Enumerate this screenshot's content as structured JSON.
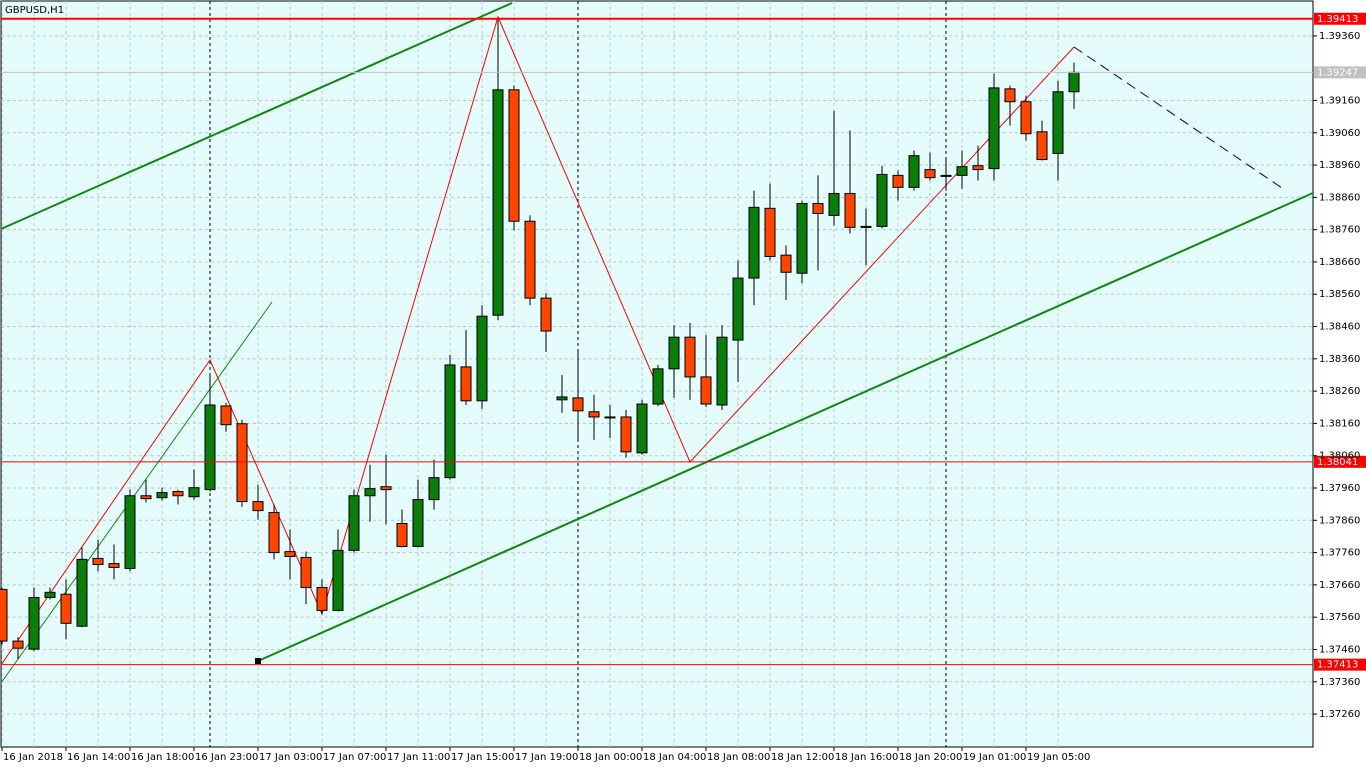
{
  "chart_data": {
    "type": "candlestick",
    "title": "GBPUSD,H1",
    "categories": [
      "16 Jan 2018",
      null,
      null,
      null,
      "16 Jan 14:00",
      null,
      null,
      null,
      "16 Jan 18:00",
      null,
      null,
      null,
      "16 Jan 23:00",
      null,
      null,
      null,
      "17 Jan 03:00",
      null,
      null,
      null,
      "17 Jan 07:00",
      null,
      null,
      null,
      "17 Jan 11:00",
      null,
      null,
      null,
      "17 Jan 15:00",
      null,
      null,
      null,
      "17 Jan 19:00",
      null,
      null,
      null,
      "18 Jan 00:00",
      null,
      null,
      null,
      "18 Jan 04:00",
      null,
      null,
      null,
      "18 Jan 08:00",
      null,
      null,
      null,
      "18 Jan 12:00",
      null,
      null,
      null,
      "18 Jan 16:00",
      null,
      null,
      null,
      "18 Jan 20:00",
      null,
      null,
      null,
      "19 Jan 01:00",
      null,
      null,
      null,
      "19 Jan 05:00",
      null,
      null,
      null
    ],
    "open": [
      1.37646,
      1.37486,
      1.37461,
      1.37621,
      1.37631,
      1.37532,
      1.37742,
      1.37726,
      1.37711,
      1.37936,
      1.3793,
      1.37949,
      1.37933,
      1.37955,
      1.38214,
      1.38159,
      1.37918,
      1.37884,
      1.37763,
      1.37745,
      1.37652,
      1.37581,
      1.37767,
      1.37936,
      1.37964,
      1.3785,
      1.37779,
      1.37924,
      1.37992,
      1.38335,
      1.3823,
      1.38495,
      1.39193,
      1.38786,
      1.38548,
      1.38233,
      1.38239,
      1.38196,
      1.3818,
      1.3818,
      1.38069,
      1.3822,
      1.38329,
      1.38427,
      1.38304,
      1.38217,
      1.38418,
      1.3861,
      1.38826,
      1.38681,
      1.38625,
      1.38841,
      1.38804,
      1.38872,
      1.3877,
      1.3877,
      1.38928,
      1.38891,
      1.38946,
      1.38925,
      1.38928,
      1.38958,
      1.38949,
      1.39196,
      1.39156,
      1.39063,
      1.38996,
      1.39187
    ],
    "high": [
      1.37652,
      1.37498,
      1.37652,
      1.37652,
      1.37677,
      1.37776,
      1.378,
      1.37785,
      1.37955,
      1.37986,
      1.37961,
      1.37955,
      1.38017,
      1.3831,
      1.38224,
      1.38171,
      1.3797,
      1.37909,
      1.37831,
      1.37763,
      1.37677,
      1.37831,
      1.37955,
      1.38032,
      1.38063,
      1.37893,
      1.37986,
      1.38048,
      1.38372,
      1.38449,
      1.38526,
      1.39416,
      1.39206,
      1.38804,
      1.38563,
      1.3831,
      1.38381,
      1.38248,
      1.38217,
      1.38202,
      1.38233,
      1.38341,
      1.38464,
      1.38471,
      1.38434,
      1.38464,
      1.38665,
      1.38881,
      1.38903,
      1.38711,
      1.3885,
      1.38928,
      1.39128,
      1.39067,
      1.38826,
      1.38958,
      1.38943,
      1.39005,
      1.38999,
      1.3898,
      1.39005,
      1.3902,
      1.39243,
      1.39206,
      1.39175,
      1.39097,
      1.39221,
      1.39277
    ],
    "low": [
      1.37476,
      1.3743,
      1.37455,
      1.37615,
      1.37492,
      1.37529,
      1.37702,
      1.37677,
      1.37702,
      1.37915,
      1.37921,
      1.37909,
      1.37924,
      1.37949,
      1.38134,
      1.37902,
      1.37862,
      1.37739,
      1.37677,
      1.376,
      1.37569,
      1.37578,
      1.3776,
      1.37856,
      1.37847,
      1.37776,
      1.37776,
      1.37893,
      1.37986,
      1.38217,
      1.38205,
      1.3848,
      1.38758,
      1.38526,
      1.38381,
      1.38193,
      1.38109,
      1.38109,
      1.38115,
      1.38054,
      1.38063,
      1.38214,
      1.38239,
      1.38233,
      1.38211,
      1.38202,
      1.38288,
      1.38526,
      1.38665,
      1.38542,
      1.38594,
      1.38634,
      1.38773,
      1.38748,
      1.3865,
      1.38764,
      1.3885,
      1.38881,
      1.38912,
      1.38881,
      1.38887,
      1.38912,
      1.38912,
      1.39082,
      1.39036,
      1.38974,
      1.38912,
      1.39134
    ],
    "close": [
      1.37486,
      1.37464,
      1.37621,
      1.37637,
      1.37541,
      1.37739,
      1.37723,
      1.37714,
      1.37936,
      1.37927,
      1.37946,
      1.37936,
      1.37961,
      1.38217,
      1.38156,
      1.37918,
      1.3789,
      1.3776,
      1.37748,
      1.37652,
      1.37581,
      1.37767,
      1.37936,
      1.37958,
      1.37955,
      1.37779,
      1.37924,
      1.37992,
      1.38341,
      1.3823,
      1.38492,
      1.39193,
      1.38786,
      1.38548,
      1.38446,
      1.38242,
      1.38199,
      1.3818,
      1.38177,
      1.38072,
      1.3822,
      1.38329,
      1.38427,
      1.38304,
      1.3822,
      1.38427,
      1.3861,
      1.38829,
      1.38677,
      1.38628,
      1.38841,
      1.3881,
      1.38872,
      1.38767,
      1.38767,
      1.38931,
      1.38891,
      1.38989,
      1.38921,
      1.38928,
      1.38955,
      1.38946,
      1.39199,
      1.39156,
      1.39057,
      1.38977,
      1.39187,
      1.39247
    ],
    "up_color": "#0a7d0a",
    "down_color": "#ff4500",
    "ylim": [
      1.37158,
      1.39468
    ],
    "yticks": [
      {
        "value": 1.3726,
        "label": "1.37260"
      },
      {
        "value": 1.3736,
        "label": "1.37360"
      },
      {
        "value": 1.3746,
        "label": "1.37460"
      },
      {
        "value": 1.3756,
        "label": "1.37560"
      },
      {
        "value": 1.3766,
        "label": "1.37660"
      },
      {
        "value": 1.3776,
        "label": "1.37760"
      },
      {
        "value": 1.3786,
        "label": "1.37860"
      },
      {
        "value": 1.3796,
        "label": "1.37960"
      },
      {
        "value": 1.3806,
        "label": "1.38060"
      },
      {
        "value": 1.3816,
        "label": "1.38160"
      },
      {
        "value": 1.3826,
        "label": "1.38260"
      },
      {
        "value": 1.3836,
        "label": "1.38360"
      },
      {
        "value": 1.3846,
        "label": "1.38460"
      },
      {
        "value": 1.3856,
        "label": "1.38560"
      },
      {
        "value": 1.3866,
        "label": "1.38660"
      },
      {
        "value": 1.3876,
        "label": "1.38760"
      },
      {
        "value": 1.3886,
        "label": "1.38860"
      },
      {
        "value": 1.3896,
        "label": "1.38960"
      },
      {
        "value": 1.3906,
        "label": "1.39060"
      },
      {
        "value": 1.3916,
        "label": "1.39160"
      },
      {
        "value": 1.3936,
        "label": "1.39360"
      }
    ],
    "levels": [
      1.39413,
      1.38041,
      1.37413
    ],
    "level_color": "#ff0000",
    "bid": 1.39247,
    "grid": true
  }
}
